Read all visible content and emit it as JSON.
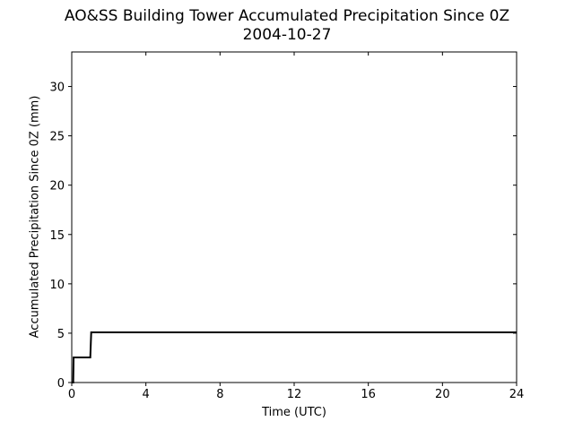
{
  "chart_data": {
    "type": "line",
    "title": "AO&SS Building Tower Accumulated Precipitation Since 0Z",
    "subtitle": "2004-10-27",
    "xlabel": "Time (UTC)",
    "ylabel": "Accumulated Precipitation Since 0Z (mm)",
    "xlim": [
      0,
      24
    ],
    "ylim": [
      0,
      33.5
    ],
    "xticks": [
      0,
      4,
      8,
      12,
      16,
      20,
      24
    ],
    "yticks": [
      0,
      5,
      10,
      15,
      20,
      25,
      30
    ],
    "grid": false,
    "series": [
      {
        "color": "#000000",
        "x": [
          0.0,
          0.08,
          0.1,
          1.0,
          1.05,
          24.0
        ],
        "y": [
          0.0,
          0.0,
          2.54,
          2.54,
          5.08,
          5.08
        ]
      }
    ]
  }
}
